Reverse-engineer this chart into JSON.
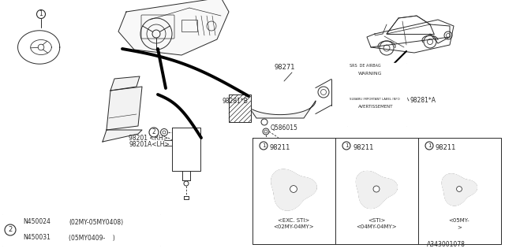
{
  "bg_color": "#ffffff",
  "line_color": "#2a2a2a",
  "diagram_id": "A343001078",
  "parts": {
    "main_assembly": "98271",
    "side_airbag_rh": "98201 <RH>",
    "side_airbag_lh": "98201A<LH>",
    "warning_label_a": "98281*A",
    "warning_label_b": "98281*B",
    "bolt": "Q586015",
    "sub1_num": "98211",
    "sub1_sub": "<EXC. STI>",
    "sub1_sub2": "<02MY-04MY>",
    "sub2_num": "98211",
    "sub2_sub": "<STI>",
    "sub2_sub2": "<04MY-04MY>",
    "sub3_num": "98211",
    "sub3_sub": "<05MY-",
    "sub3_sub2": ">"
  },
  "table_items": [
    {
      "part": "N450024",
      "desc": "(02MY-05MY0408)"
    },
    {
      "part": "N450031",
      "desc": "(05MY0409-    )"
    }
  ]
}
